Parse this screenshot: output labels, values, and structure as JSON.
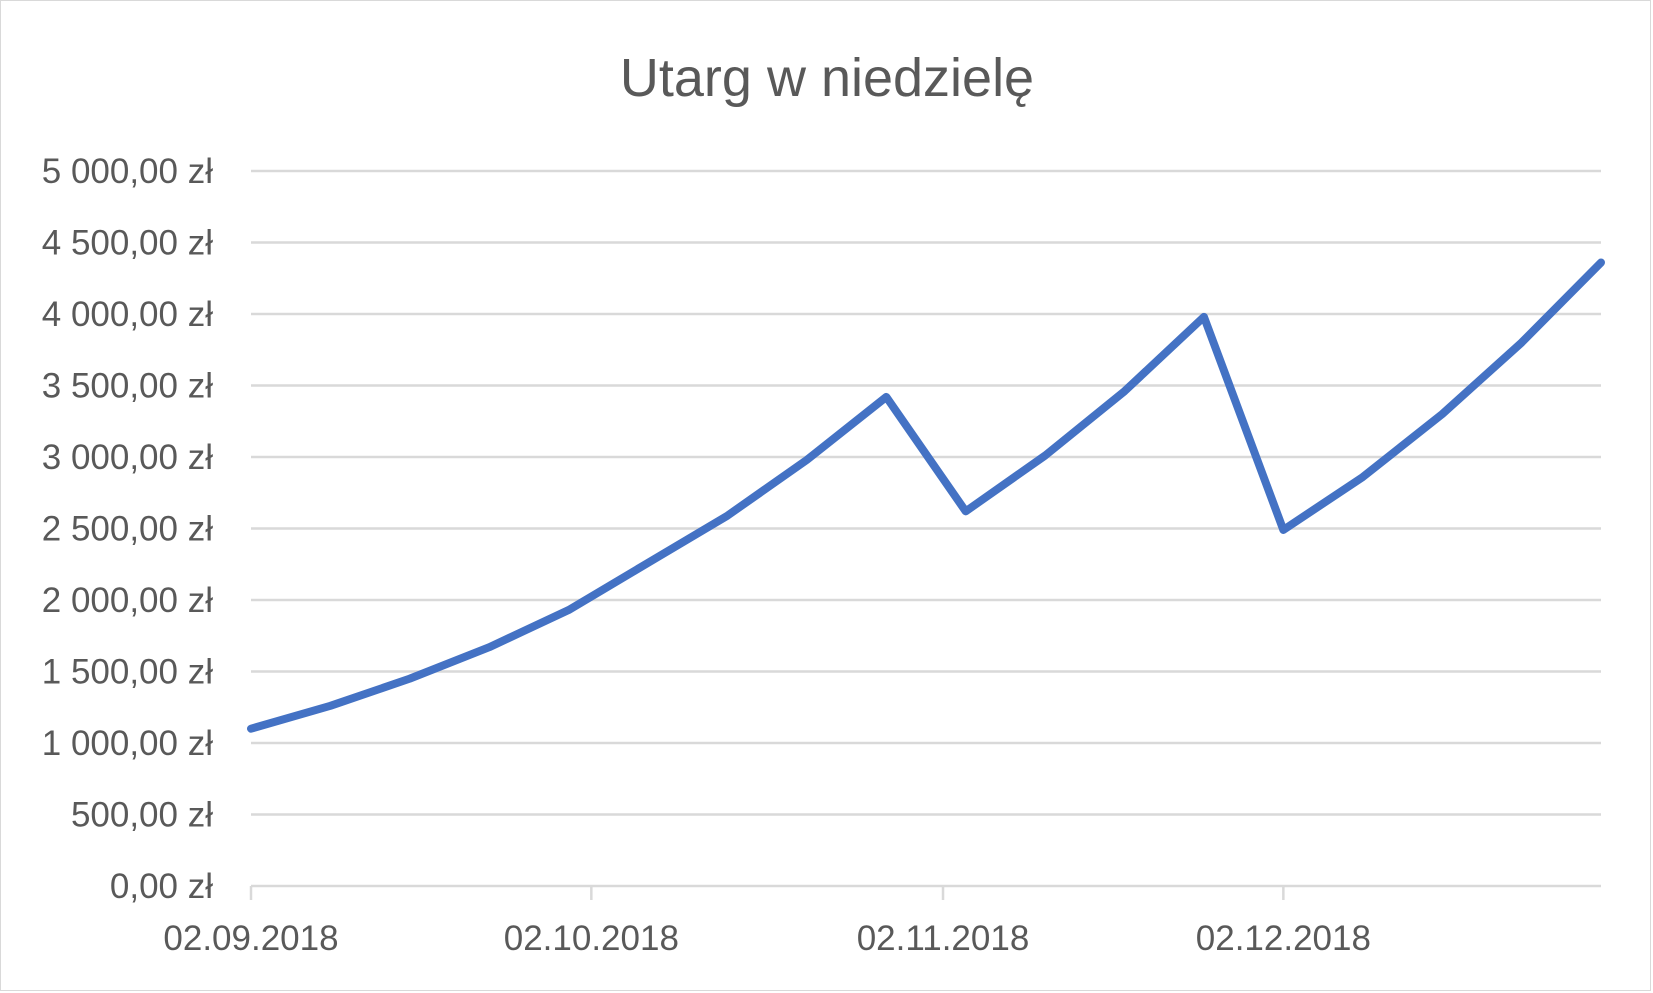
{
  "chart_data": {
    "type": "line",
    "title": "Utarg w niedzielę",
    "xlabel": "",
    "ylabel": "",
    "grid": true,
    "legend": "none",
    "colors": {
      "series": "#4472c4",
      "grid": "#d9d9d9",
      "text": "#595959"
    },
    "x": [
      "02.09.2018",
      "09.09.2018",
      "16.09.2018",
      "23.09.2018",
      "30.09.2018",
      "07.10.2018",
      "14.10.2018",
      "21.10.2018",
      "28.10.2018",
      "04.11.2018",
      "11.11.2018",
      "18.11.2018",
      "25.11.2018",
      "02.12.2018",
      "09.12.2018",
      "16.12.2018",
      "23.12.2018",
      "30.12.2018"
    ],
    "xlim": [
      "02.09.2018",
      "30.12.2018"
    ],
    "x_tick_labels": [
      "02.09.2018",
      "02.10.2018",
      "02.11.2018",
      "02.12.2018"
    ],
    "y_tick_labels": [
      "0,00 zł",
      "500,00 zł",
      "1 000,00 zł",
      "1 500,00 zł",
      "2 000,00 zł",
      "2 500,00 zł",
      "3 000,00 zł",
      "3 500,00 zł",
      "4 000,00 zł",
      "4 500,00 zł",
      "5 000,00 zł"
    ],
    "ylim": [
      0,
      5000
    ],
    "series": [
      {
        "values": [
          1100,
          1260,
          1450,
          1670,
          1930,
          2260,
          2590,
          2980,
          3420,
          2620,
          3010,
          3460,
          3980,
          2490,
          2860,
          3300,
          3800,
          4360
        ]
      }
    ]
  }
}
